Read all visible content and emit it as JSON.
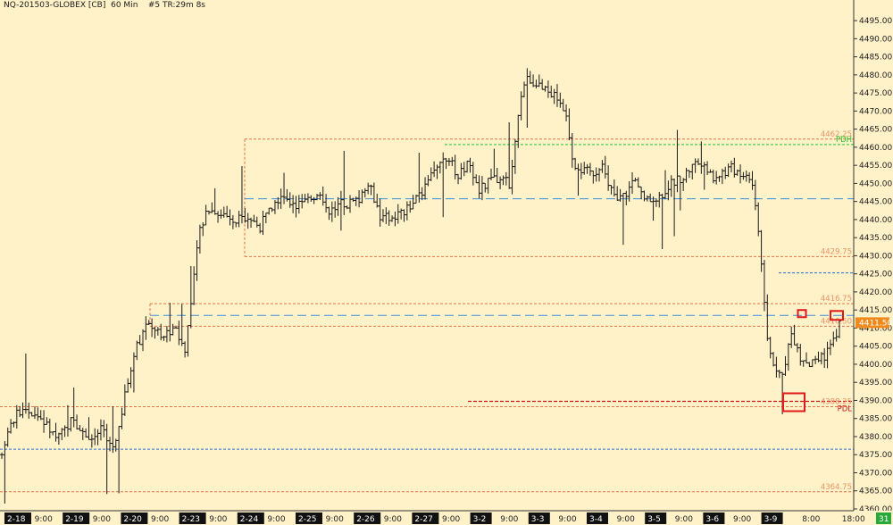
{
  "header": {
    "symbol": "NQ-201503-GLOBEX [CB]",
    "interval": "60 Min",
    "info": "#5 TR:29m 8s"
  },
  "colors": {
    "background": "#fff1c8",
    "bars": "#1a1a1a",
    "axis_text": "#222222",
    "level_orange": "#e8734a",
    "level_label": "#e8956a",
    "level_green": "#19c82a",
    "level_blue_dash": "#3a8fe0",
    "level_blue_dot": "#2a6fd6",
    "level_red": "#c81818",
    "last_price_box": "#f08a1c",
    "marker_red": "#e01a1a",
    "time_tag_bg": "#111111",
    "time_tag_text": "#ffffff",
    "time_label": "#222222",
    "corner_box_bg": "#2aa83a"
  },
  "chart_data": {
    "type": "ohlc",
    "ylim": [
      4360,
      4497
    ],
    "y_ticks": [
      4360,
      4365,
      4370,
      4375,
      4380,
      4385,
      4390,
      4395,
      4400,
      4405,
      4410,
      4415,
      4420,
      4425,
      4430,
      4435,
      4440,
      4445,
      4450,
      4455,
      4460,
      4465,
      4470,
      4475,
      4480,
      4485,
      4490,
      4495
    ],
    "y_tick_labels": [
      "4360.00",
      "4365.00",
      "4370.00",
      "4375.00",
      "4380.00",
      "4385.00",
      "4390.00",
      "4395.00",
      "4400.00",
      "4405.00",
      "4410.00",
      "4415.00",
      "4420.00",
      "4425.00",
      "4430.00",
      "4435.00",
      "4440.00",
      "4445.00",
      "4450.00",
      "4455.00",
      "4460.00",
      "4465.00",
      "4470.00",
      "4475.00",
      "4480.00",
      "4485.00",
      "4490.00",
      "4495.00"
    ],
    "x_axis": [
      {
        "text": "2-18",
        "tag": true
      },
      {
        "text": "9:00",
        "tag": false
      },
      {
        "text": "2-19",
        "tag": true
      },
      {
        "text": "9:00",
        "tag": false
      },
      {
        "text": "2-20",
        "tag": true
      },
      {
        "text": "9:00",
        "tag": false
      },
      {
        "text": "2-23",
        "tag": true
      },
      {
        "text": "9:00",
        "tag": false
      },
      {
        "text": "2-24",
        "tag": true
      },
      {
        "text": "9:00",
        "tag": false
      },
      {
        "text": "2-25",
        "tag": true
      },
      {
        "text": "9:00",
        "tag": false
      },
      {
        "text": "2-26",
        "tag": true
      },
      {
        "text": "9:00",
        "tag": false
      },
      {
        "text": "2-27",
        "tag": true
      },
      {
        "text": "9:00",
        "tag": false
      },
      {
        "text": "3-2",
        "tag": true
      },
      {
        "text": "9:00",
        "tag": false
      },
      {
        "text": "3-3",
        "tag": true
      },
      {
        "text": "9:00",
        "tag": false
      },
      {
        "text": "3-4",
        "tag": true
      },
      {
        "text": "9:00",
        "tag": false
      },
      {
        "text": "3-5",
        "tag": true
      },
      {
        "text": "9:00",
        "tag": false
      },
      {
        "text": "3-6",
        "tag": true
      },
      {
        "text": "9:00",
        "tag": false
      },
      {
        "text": "3-9",
        "tag": true
      },
      {
        "text": "8:00",
        "tag": false
      },
      {
        "text": "18:00",
        "tag": false
      }
    ],
    "corner_label": "31",
    "price_levels": [
      {
        "value": 4462.25,
        "label": "4462.25",
        "style": "orange-dash"
      },
      {
        "value": 4460.75,
        "label": "PDH",
        "style": "green-dash"
      },
      {
        "value": 4445.75,
        "label": "",
        "style": "blue-longdash"
      },
      {
        "value": 4429.75,
        "label": "4429.75",
        "style": "orange-dash"
      },
      {
        "value": 4425.25,
        "label": "",
        "style": "blue-dot"
      },
      {
        "value": 4416.75,
        "label": "4416.75",
        "style": "orange-dash"
      },
      {
        "value": 4413.5,
        "label": "",
        "style": "blue-longdash"
      },
      {
        "value": 4410.5,
        "label": "4410.50",
        "style": "orange-dash"
      },
      {
        "value": 4389.75,
        "label": "",
        "style": "red-dash"
      },
      {
        "value": 4388.25,
        "label": "4388.25",
        "style": "orange-dash"
      },
      {
        "value": 4388.0,
        "label": "PDL",
        "style": "red-text"
      },
      {
        "value": 4376.5,
        "label": "",
        "style": "blue-dot"
      },
      {
        "value": 4364.75,
        "label": "4364.75",
        "style": "orange-dash"
      }
    ],
    "last_price": {
      "value": 4411.5,
      "label": "4411.50"
    },
    "range_box": {
      "from": 4462.25,
      "to": 4429.75
    },
    "markers": [
      {
        "value": 4389.5
      },
      {
        "value": 4414.0
      },
      {
        "value": 4413.5
      }
    ],
    "price_path": [
      [
        0,
        4375
      ],
      [
        0.7,
        4385
      ],
      [
        1.5,
        4388
      ],
      [
        2.5,
        4385
      ],
      [
        3.5,
        4379
      ],
      [
        4.5,
        4385
      ],
      [
        5.5,
        4378
      ],
      [
        6.3,
        4382
      ],
      [
        7,
        4376
      ],
      [
        7.5,
        4385
      ],
      [
        8.3,
        4402
      ],
      [
        9.2,
        4412
      ],
      [
        10.2,
        4408
      ],
      [
        11,
        4409
      ],
      [
        11.6,
        4404
      ],
      [
        12,
        4418
      ],
      [
        12.4,
        4436
      ],
      [
        13,
        4443
      ],
      [
        14.5,
        4440
      ],
      [
        15.5,
        4441
      ],
      [
        16.3,
        4438
      ],
      [
        17.5,
        4446
      ],
      [
        18.3,
        4445
      ],
      [
        19,
        4444
      ],
      [
        20.2,
        4448
      ],
      [
        20.6,
        4442
      ],
      [
        21.4,
        4444
      ],
      [
        22.5,
        4445
      ],
      [
        23.2,
        4451
      ],
      [
        24,
        4440
      ],
      [
        25.5,
        4442
      ],
      [
        26.5,
        4447
      ],
      [
        27.3,
        4455
      ],
      [
        28.3,
        4457
      ],
      [
        28.8,
        4452
      ],
      [
        29.5,
        4455
      ],
      [
        30.2,
        4448
      ],
      [
        31,
        4451
      ],
      [
        32.1,
        4450
      ],
      [
        32.8,
        4472
      ],
      [
        33.2,
        4480
      ],
      [
        34.2,
        4476
      ],
      [
        35.1,
        4474
      ],
      [
        35.7,
        4470
      ],
      [
        36.2,
        4455
      ],
      [
        37,
        4453
      ],
      [
        38,
        4454
      ],
      [
        39,
        4445
      ],
      [
        40,
        4450
      ],
      [
        40.7,
        4446
      ],
      [
        41.5,
        4446
      ],
      [
        42.4,
        4450
      ],
      [
        43.1,
        4452
      ],
      [
        44,
        4456
      ],
      [
        45,
        4452
      ],
      [
        46.2,
        4454
      ],
      [
        47.4,
        4452
      ],
      [
        47.9,
        4437
      ],
      [
        48.5,
        4405
      ],
      [
        49.3,
        4395
      ],
      [
        49.9,
        4408
      ],
      [
        50.5,
        4402
      ],
      [
        51.5,
        4400
      ],
      [
        52.4,
        4404
      ],
      [
        53,
        4411.5
      ]
    ]
  }
}
